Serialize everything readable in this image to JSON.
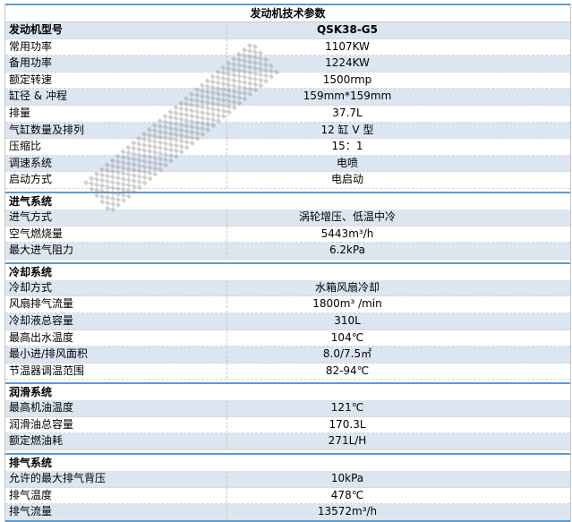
{
  "title": "发动机技术参数",
  "header": {
    "label": "发动机型号",
    "value": "QSK38-G5"
  },
  "general": [
    {
      "k": "常用功率",
      "v": "1107KW"
    },
    {
      "k": "备用功率",
      "v": "1224KW"
    },
    {
      "k": "额定转速",
      "v": "1500rmp"
    },
    {
      "k": "缸径 & 冲程",
      "v": "159mm*159mm"
    },
    {
      "k": "排量",
      "v": "37.7L"
    },
    {
      "k": "气缸数量及排列",
      "v": "12 缸 V 型"
    },
    {
      "k": "压缩比",
      "v": "15：1"
    },
    {
      "k": "调速系统",
      "v": "电喷"
    },
    {
      "k": "启动方式",
      "v": "电启动"
    }
  ],
  "sections": [
    {
      "title": "进气系统",
      "rows": [
        {
          "k": "进气方式",
          "v": "涡轮增压、低温中冷"
        },
        {
          "k": "空气燃烧量",
          "v": "5443m³/h"
        },
        {
          "k": "最大进气阻力",
          "v": "6.2kPa"
        }
      ]
    },
    {
      "title": "冷却系统",
      "rows": [
        {
          "k": "冷却方式",
          "v": "水箱风扇冷却"
        },
        {
          "k": "风扇排气流量",
          "v": "1800m³ /min"
        },
        {
          "k": "冷却液总容量",
          "v": "310L"
        },
        {
          "k": "最高出水温度",
          "v": "104℃"
        },
        {
          "k": "最小进/排风面积",
          "v": "8.0/7.5㎡"
        },
        {
          "k": "节温器调温范围",
          "v": "82-94℃"
        }
      ]
    },
    {
      "title": "润滑系统",
      "rows": [
        {
          "k": "最高机油温度",
          "v": "121℃"
        },
        {
          "k": "润滑油总容量",
          "v": "170.3L"
        },
        {
          "k": "额定燃油耗",
          "v": "271L/H"
        }
      ]
    },
    {
      "title": "排气系统",
      "rows": [
        {
          "k": "允许的最大排气背压",
          "v": "10kPa"
        },
        {
          "k": "排气温度",
          "v": "478℃"
        },
        {
          "k": "排气流量",
          "v": "13572m³/h"
        }
      ]
    }
  ]
}
